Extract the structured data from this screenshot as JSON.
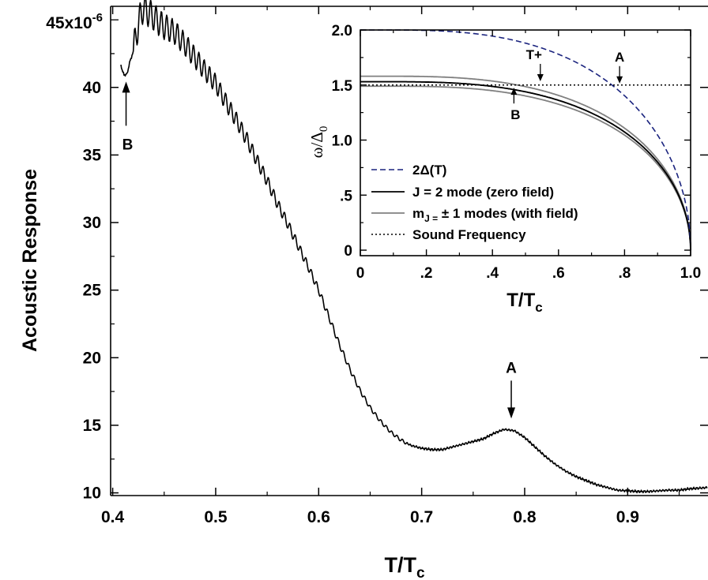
{
  "chart_data": [
    {
      "type": "line",
      "xlabel_main": "T/T",
      "xlabel_sub": "c",
      "ylabel": "Acoustic Response",
      "xlim": [
        0.398,
        0.978
      ],
      "ylim": [
        9.8,
        46
      ],
      "x_ticks": [
        0.4,
        0.5,
        0.6,
        0.7,
        0.8,
        0.9
      ],
      "x_tick_labels": [
        "0.4",
        "0.5",
        "0.6",
        "0.7",
        "0.8",
        "0.9"
      ],
      "y_ticks": [
        10,
        15,
        20,
        25,
        30,
        35,
        40
      ],
      "y_tick_labels": [
        "10",
        "15",
        "20",
        "25",
        "30",
        "35",
        "40"
      ],
      "y_top_label": {
        "base": "45x10",
        "exponent": "-6"
      },
      "grid": false,
      "annotations": [
        {
          "text": "A",
          "x": 0.787,
          "y": 14.8,
          "direction": "down"
        },
        {
          "text": "B",
          "x": 0.413,
          "y": 40.9,
          "direction": "up"
        }
      ],
      "series": [
        {
          "line_color": "#000000",
          "points": [
            [
              0.408,
              41.6
            ],
            [
              0.411,
              40.9
            ],
            [
              0.414,
              41.0
            ],
            [
              0.417,
              42.0
            ],
            [
              0.42,
              42.6
            ],
            [
              0.423,
              44.0
            ],
            [
              0.426,
              45.0
            ],
            [
              0.43,
              46.0
            ],
            [
              0.433,
              45.6
            ],
            [
              0.436,
              45.5
            ],
            [
              0.44,
              45.2
            ],
            [
              0.445,
              44.8
            ],
            [
              0.45,
              44.5
            ],
            [
              0.46,
              44.1
            ],
            [
              0.47,
              43.2
            ],
            [
              0.48,
              42.2
            ],
            [
              0.49,
              41.2
            ],
            [
              0.5,
              40.3
            ],
            [
              0.51,
              38.9
            ],
            [
              0.52,
              37.6
            ],
            [
              0.53,
              36.2
            ],
            [
              0.54,
              34.6
            ],
            [
              0.55,
              33.1
            ],
            [
              0.56,
              31.4
            ],
            [
              0.57,
              29.9
            ],
            [
              0.58,
              28.3
            ],
            [
              0.59,
              26.7
            ],
            [
              0.6,
              25.0
            ],
            [
              0.61,
              23.0
            ],
            [
              0.62,
              21.0
            ],
            [
              0.63,
              19.2
            ],
            [
              0.64,
              17.6
            ],
            [
              0.65,
              16.3
            ],
            [
              0.66,
              15.3
            ],
            [
              0.67,
              14.5
            ],
            [
              0.68,
              13.9
            ],
            [
              0.69,
              13.5
            ],
            [
              0.7,
              13.3
            ],
            [
              0.71,
              13.2
            ],
            [
              0.72,
              13.2
            ],
            [
              0.73,
              13.4
            ],
            [
              0.74,
              13.6
            ],
            [
              0.75,
              13.8
            ],
            [
              0.76,
              14.0
            ],
            [
              0.77,
              14.4
            ],
            [
              0.78,
              14.7
            ],
            [
              0.79,
              14.6
            ],
            [
              0.8,
              14.1
            ],
            [
              0.81,
              13.4
            ],
            [
              0.82,
              12.7
            ],
            [
              0.83,
              12.1
            ],
            [
              0.84,
              11.6
            ],
            [
              0.85,
              11.2
            ],
            [
              0.86,
              10.9
            ],
            [
              0.87,
              10.6
            ],
            [
              0.88,
              10.4
            ],
            [
              0.89,
              10.2
            ],
            [
              0.9,
              10.15
            ],
            [
              0.91,
              10.1
            ],
            [
              0.92,
              10.1
            ],
            [
              0.93,
              10.15
            ],
            [
              0.94,
              10.2
            ],
            [
              0.95,
              10.2
            ],
            [
              0.96,
              10.3
            ],
            [
              0.97,
              10.35
            ],
            [
              0.978,
              10.4
            ]
          ],
          "oscillations": {
            "x_range": [
              0.42,
              0.685
            ],
            "period": 0.0052,
            "amplitude_start": 1.15,
            "amplitude_end": 0.12
          }
        }
      ]
    },
    {
      "type": "line",
      "xlabel_main": "T/T",
      "xlabel_sub": "c",
      "ylabel_main": "ω/Δ",
      "ylabel_sub": "0",
      "xlim": [
        0,
        1.0
      ],
      "ylim": [
        -0.05,
        2.0
      ],
      "x_ticks": [
        0,
        0.2,
        0.4,
        0.6,
        0.8,
        1.0
      ],
      "x_tick_labels": [
        "0",
        ".2",
        ".4",
        ".6",
        ".8",
        "1.0"
      ],
      "y_ticks": [
        0,
        0.5,
        1.0,
        1.5,
        2.0
      ],
      "y_tick_labels": [
        "0",
        ".5",
        "1.0",
        "1.5",
        "2.0"
      ],
      "grid": false,
      "legend_position": "bottom-left",
      "annotations": [
        {
          "text": "A",
          "x": 0.785,
          "y": 1.5,
          "direction": "down"
        },
        {
          "text": "T+",
          "x": 0.545,
          "y": 1.52,
          "direction": "down"
        },
        {
          "text": "B",
          "x": 0.465,
          "y": 1.49,
          "direction": "up"
        }
      ],
      "series": [
        {
          "name": "2Δ(T)",
          "style": "dashed",
          "color": "#1a237e",
          "amplitude": 2.0
        },
        {
          "name_parts": [
            "J = 2  mode (zero field)"
          ],
          "style": "solid",
          "color": "#000000",
          "amplitude": 1.53
        },
        {
          "name_parts": [
            "m",
            "J =",
            " ± 1 modes (with field)"
          ],
          "style": "solid",
          "color": "#808080",
          "amplitudes": [
            1.58,
            1.49
          ]
        },
        {
          "name_parts": [
            "Sound Frequency"
          ],
          "style": "dotted",
          "color": "#000000",
          "constant": 1.5
        }
      ]
    }
  ]
}
